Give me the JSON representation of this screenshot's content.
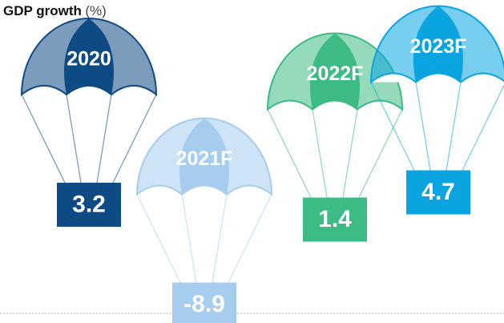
{
  "chart_data": {
    "type": "parachute",
    "title": "GDP growth",
    "unit": "(%)",
    "categories": [
      "2020",
      "2021F",
      "2022F",
      "2023F"
    ],
    "values": [
      3.2,
      -8.9,
      1.4,
      4.7
    ],
    "colors": [
      "#0e4a84",
      "#a6cdee",
      "#3dbb84",
      "#0aa5e0"
    ]
  }
}
